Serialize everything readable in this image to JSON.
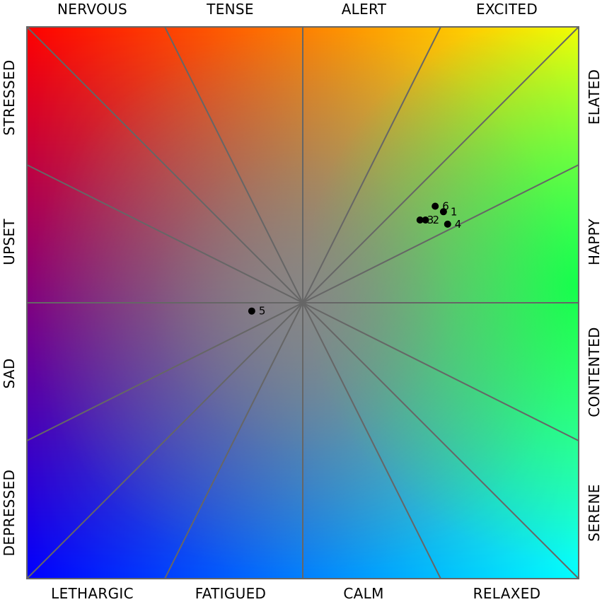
{
  "chart_data": {
    "type": "scatter",
    "title": "",
    "xlim": [
      -1,
      1
    ],
    "ylim": [
      -1,
      1
    ],
    "grid": true,
    "labels_top": [
      "NERVOUS",
      "TENSE",
      "ALERT",
      "EXCITED"
    ],
    "labels_bottom": [
      "LETHARGIC",
      "FATIGUED",
      "CALM",
      "RELAXED"
    ],
    "labels_left": [
      "STRESSED",
      "UPSET",
      "SAD",
      "DEPRESSED"
    ],
    "labels_right": [
      "ELATED",
      "HAPPY",
      "CONTENTED",
      "SERENE"
    ],
    "points": [
      {
        "label": "1",
        "x": 0.51,
        "y": 0.33
      },
      {
        "label": "2",
        "x": 0.445,
        "y": 0.3
      },
      {
        "label": "3",
        "x": 0.425,
        "y": 0.3
      },
      {
        "label": "4",
        "x": 0.525,
        "y": 0.285
      },
      {
        "label": "5",
        "x": -0.185,
        "y": -0.03
      },
      {
        "label": "6",
        "x": 0.48,
        "y": 0.35
      }
    ],
    "colors": {
      "top_left": "#ff0000",
      "top_right": "#ffff00",
      "bottom_left": "#0000ff",
      "bottom_right": "#00ffff",
      "mid_right": "#00ff44",
      "guide_lines": "#666666",
      "markers": "#000000"
    }
  }
}
